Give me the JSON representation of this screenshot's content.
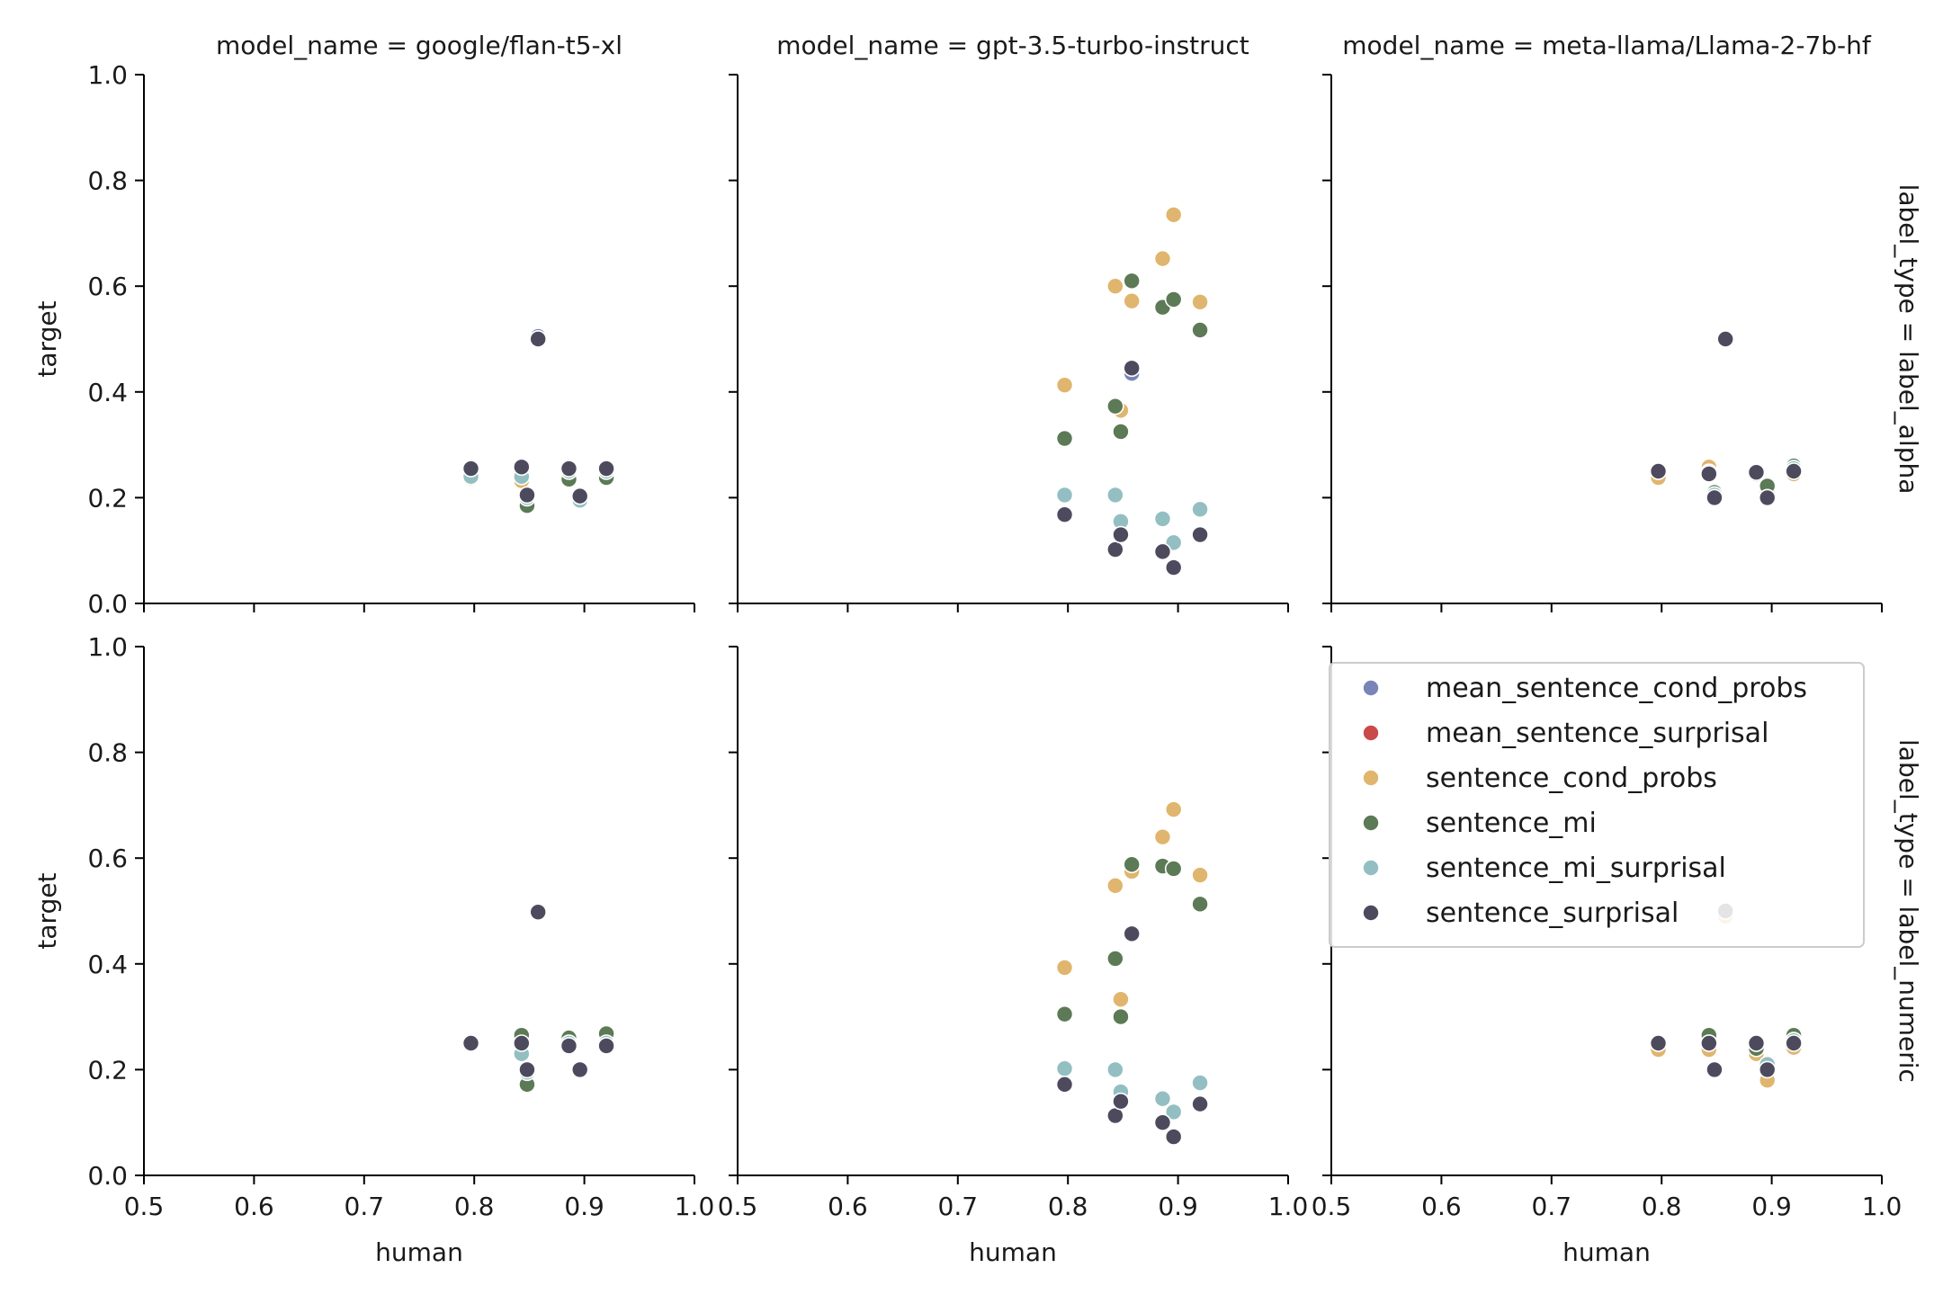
{
  "colors": {
    "mean_sentence_cond_probs": "#7985b8",
    "mean_sentence_surprisal": "#c94a4a",
    "sentence_cond_probs": "#e0b56e",
    "sentence_mi": "#5b7a55",
    "sentence_mi_surprisal": "#93bfc2",
    "sentence_surprisal": "#4e4a5e"
  },
  "legend": {
    "items": [
      {
        "key": "mean_sentence_cond_probs",
        "label": "mean_sentence_cond_probs"
      },
      {
        "key": "mean_sentence_surprisal",
        "label": "mean_sentence_surprisal"
      },
      {
        "key": "sentence_cond_probs",
        "label": "sentence_cond_probs"
      },
      {
        "key": "sentence_mi",
        "label": "sentence_mi"
      },
      {
        "key": "sentence_mi_surprisal",
        "label": "sentence_mi_surprisal"
      },
      {
        "key": "sentence_surprisal",
        "label": "sentence_surprisal"
      }
    ]
  },
  "chart_data": {
    "type": "scatter",
    "xlabel": "human",
    "ylabel": "target",
    "xlim": [
      0.5,
      1.0
    ],
    "ylim": [
      0.0,
      1.0
    ],
    "xticks": [
      "0.5",
      "0.6",
      "0.7",
      "0.8",
      "0.9",
      "1.0"
    ],
    "yticks": [
      "0.0",
      "0.2",
      "0.4",
      "0.6",
      "0.8",
      "1.0"
    ],
    "column_titles": [
      "model_name = google/flan-t5-xl",
      "model_name = gpt-3.5-turbo-instruct",
      "model_name = meta-llama/Llama-2-7b-hf"
    ],
    "row_titles": [
      "label_type = label_alpha",
      "label_type = label_numeric"
    ],
    "legend_position": "right, bottom-right panel",
    "panels": [
      {
        "row": 0,
        "col": 0,
        "series": {
          "mean_sentence_cond_probs": [
            [
              0.797,
              0.245
            ],
            [
              0.843,
              0.245
            ],
            [
              0.858,
              0.505
            ],
            [
              0.886,
              0.25
            ],
            [
              0.896,
              0.195
            ],
            [
              0.92,
              0.25
            ],
            [
              0.848,
              0.205
            ]
          ],
          "mean_sentence_surprisal": [
            [
              0.797,
              0.245
            ],
            [
              0.843,
              0.235
            ],
            [
              0.858,
              0.5
            ],
            [
              0.886,
              0.25
            ],
            [
              0.896,
              0.2
            ],
            [
              0.92,
              0.25
            ],
            [
              0.848,
              0.2
            ]
          ],
          "sentence_cond_probs": [
            [
              0.797,
              0.237
            ],
            [
              0.843,
              0.232
            ],
            [
              0.858,
              0.5
            ],
            [
              0.886,
              0.24
            ],
            [
              0.896,
              0.2
            ],
            [
              0.92,
              0.245
            ],
            [
              0.848,
              0.19
            ]
          ],
          "sentence_mi": [
            [
              0.797,
              0.25
            ],
            [
              0.843,
              0.245
            ],
            [
              0.848,
              0.185
            ],
            [
              0.858,
              0.5
            ],
            [
              0.886,
              0.235
            ],
            [
              0.896,
              0.2
            ],
            [
              0.92,
              0.238
            ]
          ],
          "sentence_mi_surprisal": [
            [
              0.797,
              0.24
            ],
            [
              0.843,
              0.24
            ],
            [
              0.848,
              0.2
            ],
            [
              0.858,
              0.5
            ],
            [
              0.886,
              0.25
            ],
            [
              0.896,
              0.195
            ],
            [
              0.92,
              0.25
            ]
          ],
          "sentence_surprisal": [
            [
              0.797,
              0.255
            ],
            [
              0.843,
              0.258
            ],
            [
              0.848,
              0.205
            ],
            [
              0.858,
              0.5
            ],
            [
              0.886,
              0.255
            ],
            [
              0.896,
              0.203
            ],
            [
              0.92,
              0.255
            ]
          ]
        }
      },
      {
        "row": 0,
        "col": 1,
        "series": {
          "mean_sentence_cond_probs": [
            [
              0.858,
              0.435
            ]
          ],
          "mean_sentence_surprisal": [],
          "sentence_cond_probs": [
            [
              0.797,
              0.413
            ],
            [
              0.843,
              0.6
            ],
            [
              0.848,
              0.365
            ],
            [
              0.858,
              0.572
            ],
            [
              0.886,
              0.652
            ],
            [
              0.896,
              0.735
            ],
            [
              0.92,
              0.57
            ]
          ],
          "sentence_mi": [
            [
              0.797,
              0.312
            ],
            [
              0.843,
              0.373
            ],
            [
              0.848,
              0.325
            ],
            [
              0.858,
              0.61
            ],
            [
              0.886,
              0.56
            ],
            [
              0.896,
              0.575
            ],
            [
              0.92,
              0.517
            ]
          ],
          "sentence_mi_surprisal": [
            [
              0.797,
              0.205
            ],
            [
              0.843,
              0.205
            ],
            [
              0.848,
              0.155
            ],
            [
              0.886,
              0.16
            ],
            [
              0.896,
              0.115
            ],
            [
              0.92,
              0.178
            ]
          ],
          "sentence_surprisal": [
            [
              0.797,
              0.168
            ],
            [
              0.843,
              0.102
            ],
            [
              0.848,
              0.13
            ],
            [
              0.858,
              0.445
            ],
            [
              0.886,
              0.098
            ],
            [
              0.896,
              0.068
            ],
            [
              0.92,
              0.13
            ]
          ]
        }
      },
      {
        "row": 0,
        "col": 2,
        "series": {
          "mean_sentence_cond_probs": [
            [
              0.797,
              0.245
            ],
            [
              0.843,
              0.25
            ],
            [
              0.858,
              0.5
            ],
            [
              0.886,
              0.245
            ],
            [
              0.896,
              0.2
            ],
            [
              0.92,
              0.25
            ]
          ],
          "mean_sentence_surprisal": [
            [
              0.797,
              0.245
            ],
            [
              0.843,
              0.25
            ],
            [
              0.858,
              0.5
            ],
            [
              0.886,
              0.245
            ],
            [
              0.896,
              0.2
            ],
            [
              0.92,
              0.25
            ]
          ],
          "sentence_cond_probs": [
            [
              0.797,
              0.238
            ],
            [
              0.843,
              0.258
            ],
            [
              0.848,
              0.2
            ],
            [
              0.858,
              0.5
            ],
            [
              0.886,
              0.248
            ],
            [
              0.896,
              0.21
            ],
            [
              0.92,
              0.245
            ]
          ],
          "sentence_mi": [
            [
              0.797,
              0.25
            ],
            [
              0.843,
              0.245
            ],
            [
              0.848,
              0.21
            ],
            [
              0.858,
              0.5
            ],
            [
              0.886,
              0.245
            ],
            [
              0.896,
              0.222
            ],
            [
              0.92,
              0.26
            ]
          ],
          "sentence_mi_surprisal": [
            [
              0.797,
              0.25
            ],
            [
              0.843,
              0.248
            ],
            [
              0.848,
              0.205
            ],
            [
              0.858,
              0.5
            ],
            [
              0.886,
              0.25
            ],
            [
              0.896,
              0.2
            ],
            [
              0.92,
              0.255
            ]
          ],
          "sentence_surprisal": [
            [
              0.797,
              0.25
            ],
            [
              0.843,
              0.245
            ],
            [
              0.848,
              0.2
            ],
            [
              0.858,
              0.5
            ],
            [
              0.886,
              0.248
            ],
            [
              0.896,
              0.2
            ],
            [
              0.92,
              0.25
            ]
          ]
        }
      },
      {
        "row": 1,
        "col": 0,
        "series": {
          "mean_sentence_cond_probs": [
            [
              0.797,
              0.25
            ],
            [
              0.843,
              0.235
            ],
            [
              0.858,
              0.5
            ],
            [
              0.886,
              0.245
            ],
            [
              0.896,
              0.2
            ],
            [
              0.92,
              0.245
            ]
          ],
          "mean_sentence_surprisal": [
            [
              0.797,
              0.25
            ],
            [
              0.843,
              0.235
            ],
            [
              0.858,
              0.5
            ],
            [
              0.886,
              0.245
            ],
            [
              0.896,
              0.2
            ],
            [
              0.92,
              0.245
            ]
          ],
          "sentence_cond_probs": [
            [
              0.797,
              0.25
            ],
            [
              0.843,
              0.24
            ],
            [
              0.848,
              0.19
            ],
            [
              0.858,
              0.5
            ],
            [
              0.886,
              0.25
            ],
            [
              0.896,
              0.2
            ],
            [
              0.92,
              0.25
            ]
          ],
          "sentence_mi": [
            [
              0.797,
              0.25
            ],
            [
              0.843,
              0.265
            ],
            [
              0.848,
              0.172
            ],
            [
              0.858,
              0.5
            ],
            [
              0.886,
              0.26
            ],
            [
              0.896,
              0.2
            ],
            [
              0.92,
              0.268
            ]
          ],
          "sentence_mi_surprisal": [
            [
              0.797,
              0.25
            ],
            [
              0.843,
              0.23
            ],
            [
              0.848,
              0.195
            ],
            [
              0.858,
              0.5
            ],
            [
              0.886,
              0.25
            ],
            [
              0.896,
              0.198
            ],
            [
              0.92,
              0.25
            ]
          ],
          "sentence_surprisal": [
            [
              0.797,
              0.25
            ],
            [
              0.843,
              0.25
            ],
            [
              0.848,
              0.2
            ],
            [
              0.858,
              0.498
            ],
            [
              0.886,
              0.245
            ],
            [
              0.896,
              0.2
            ],
            [
              0.92,
              0.245
            ]
          ]
        }
      },
      {
        "row": 1,
        "col": 1,
        "series": {
          "mean_sentence_cond_probs": [],
          "mean_sentence_surprisal": [],
          "sentence_cond_probs": [
            [
              0.797,
              0.393
            ],
            [
              0.843,
              0.548
            ],
            [
              0.848,
              0.333
            ],
            [
              0.858,
              0.575
            ],
            [
              0.886,
              0.64
            ],
            [
              0.896,
              0.692
            ],
            [
              0.92,
              0.568
            ]
          ],
          "sentence_mi": [
            [
              0.797,
              0.305
            ],
            [
              0.843,
              0.41
            ],
            [
              0.848,
              0.3
            ],
            [
              0.858,
              0.588
            ],
            [
              0.886,
              0.585
            ],
            [
              0.896,
              0.58
            ],
            [
              0.92,
              0.513
            ]
          ],
          "sentence_mi_surprisal": [
            [
              0.797,
              0.202
            ],
            [
              0.843,
              0.2
            ],
            [
              0.848,
              0.158
            ],
            [
              0.886,
              0.145
            ],
            [
              0.896,
              0.12
            ],
            [
              0.92,
              0.175
            ]
          ],
          "sentence_surprisal": [
            [
              0.797,
              0.172
            ],
            [
              0.843,
              0.113
            ],
            [
              0.848,
              0.14
            ],
            [
              0.858,
              0.457
            ],
            [
              0.886,
              0.1
            ],
            [
              0.896,
              0.073
            ],
            [
              0.92,
              0.135
            ]
          ]
        }
      },
      {
        "row": 1,
        "col": 2,
        "series": {
          "mean_sentence_cond_probs": [
            [
              0.797,
              0.245
            ],
            [
              0.843,
              0.25
            ],
            [
              0.858,
              0.5
            ],
            [
              0.886,
              0.245
            ],
            [
              0.896,
              0.2
            ],
            [
              0.92,
              0.25
            ]
          ],
          "mean_sentence_surprisal": [
            [
              0.797,
              0.245
            ],
            [
              0.843,
              0.25
            ],
            [
              0.858,
              0.5
            ],
            [
              0.886,
              0.245
            ],
            [
              0.896,
              0.2
            ],
            [
              0.92,
              0.25
            ]
          ],
          "sentence_cond_probs": [
            [
              0.797,
              0.238
            ],
            [
              0.843,
              0.238
            ],
            [
              0.848,
              0.198
            ],
            [
              0.858,
              0.49
            ],
            [
              0.886,
              0.23
            ],
            [
              0.896,
              0.18
            ],
            [
              0.92,
              0.242
            ]
          ],
          "sentence_mi": [
            [
              0.797,
              0.25
            ],
            [
              0.843,
              0.265
            ],
            [
              0.848,
              0.2
            ],
            [
              0.858,
              0.5
            ],
            [
              0.886,
              0.24
            ],
            [
              0.896,
              0.205
            ],
            [
              0.92,
              0.265
            ]
          ],
          "sentence_mi_surprisal": [
            [
              0.797,
              0.25
            ],
            [
              0.843,
              0.25
            ],
            [
              0.848,
              0.2
            ],
            [
              0.858,
              0.5
            ],
            [
              0.886,
              0.25
            ],
            [
              0.896,
              0.21
            ],
            [
              0.92,
              0.255
            ]
          ],
          "sentence_surprisal": [
            [
              0.797,
              0.25
            ],
            [
              0.843,
              0.25
            ],
            [
              0.848,
              0.2
            ],
            [
              0.858,
              0.5
            ],
            [
              0.886,
              0.25
            ],
            [
              0.896,
              0.2
            ],
            [
              0.92,
              0.25
            ]
          ]
        }
      }
    ]
  }
}
